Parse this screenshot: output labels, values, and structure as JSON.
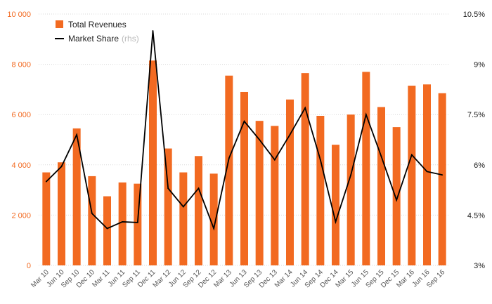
{
  "chart_data": {
    "type": "bar",
    "categories": [
      "Mar 10",
      "Jun 10",
      "Sep 10",
      "Dec 10",
      "Mar 11",
      "Jun 11",
      "Sep 11",
      "Dec 11",
      "Mar 12",
      "Jun 12",
      "Sep 12",
      "Dec 12",
      "Mar 13",
      "Jun 13",
      "Sep 13",
      "Dec 13",
      "Mar 14",
      "Jun 14",
      "Sep 14",
      "Dec 14",
      "Mar 15",
      "Jun 15",
      "Sep 15",
      "Dec 15",
      "Mar 16",
      "Jun 16",
      "Sep 16"
    ],
    "series": [
      {
        "name": "Total Revenues",
        "type": "bar",
        "axis": "left",
        "color": "#f26a21",
        "values": [
          3700,
          4100,
          5450,
          3550,
          2750,
          3300,
          3250,
          8150,
          4650,
          3700,
          4350,
          3650,
          7550,
          6900,
          5750,
          5550,
          6600,
          7650,
          5950,
          4800,
          6000,
          7700,
          6300,
          5500,
          7150,
          7200,
          6850
        ]
      },
      {
        "name": "Market Share",
        "note": "(rhs)",
        "type": "line",
        "axis": "right",
        "color": "#000000",
        "values": [
          5.5,
          5.95,
          6.9,
          4.55,
          4.1,
          4.3,
          4.28,
          10.0,
          5.3,
          4.75,
          5.3,
          4.1,
          6.2,
          7.3,
          6.75,
          6.15,
          6.9,
          7.7,
          6.15,
          4.3,
          5.7,
          7.5,
          6.25,
          4.95,
          6.3,
          5.8,
          5.7
        ]
      }
    ],
    "ylim": [
      0,
      10000
    ],
    "y_ticks": [
      0,
      2000,
      4000,
      6000,
      8000,
      10000
    ],
    "y_tick_labels": [
      "0",
      "2 000",
      "4 000",
      "6 000",
      "8 000",
      "10 000"
    ],
    "y2lim": [
      3,
      10.5
    ],
    "y2_ticks": [
      3,
      4.5,
      6,
      7.5,
      9,
      10.5
    ],
    "y2_tick_labels": [
      "3%",
      "4.5%",
      "6%",
      "7.5%",
      "9%",
      "10.5%"
    ],
    "grid": true,
    "legend_position": "top-left",
    "title": "",
    "xlabel": "",
    "ylabel": ""
  }
}
